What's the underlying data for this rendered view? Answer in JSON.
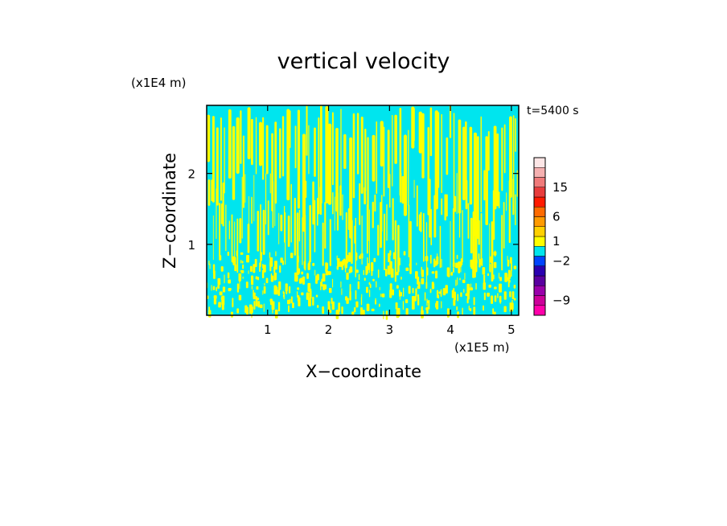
{
  "chart_data": {
    "type": "heatmap",
    "title": "vertical velocity",
    "xlabel": "X−coordinate",
    "ylabel": "Z−coordinate",
    "x_scale_note": "(x1E5 m)",
    "y_scale_note": "(x1E4 m)",
    "time_label": "t=5400 s",
    "xlim": [
      0,
      5.12
    ],
    "ylim": [
      0,
      2.96
    ],
    "x_ticks": [
      1,
      2,
      3,
      4,
      5
    ],
    "x_tick_labels": [
      "1",
      "2",
      "3",
      "4",
      "5"
    ],
    "y_ticks": [
      1,
      2
    ],
    "y_tick_labels": [
      "1",
      "2"
    ],
    "grid": false,
    "field_colors": {
      "positive": "#ffff00",
      "negative": "#00e5ee"
    },
    "colorbar": {
      "labels": [
        {
          "text": "15",
          "value": 15
        },
        {
          "text": "6",
          "value": 6
        },
        {
          "text": "1",
          "value": 1
        },
        {
          "text": "−2",
          "value": -2
        },
        {
          "text": "−9",
          "value": -9
        }
      ],
      "colors": [
        "#ff00aa",
        "#cc0099",
        "#9900aa",
        "#5a00a0",
        "#2a00b0",
        "#0044ff",
        "#00e5ee",
        "#ffff00",
        "#ffd000",
        "#ff9a00",
        "#ff6a00",
        "#ff1a00",
        "#e83c3c",
        "#f07a7a",
        "#f5b0b0",
        "#fde6e6"
      ]
    }
  }
}
